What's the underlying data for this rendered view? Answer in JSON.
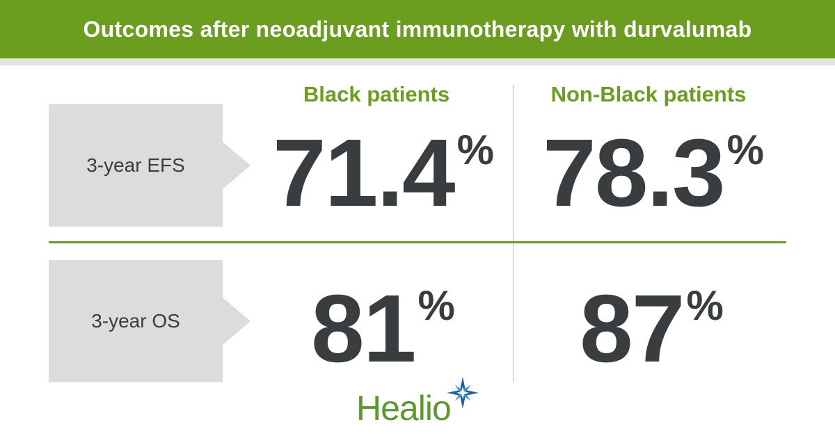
{
  "header": {
    "title": "Outcomes after neoadjuvant immunotherapy with durvalumab"
  },
  "columns": [
    "Black patients",
    "Non-Black patients"
  ],
  "rows": [
    {
      "label": "3-year EFS",
      "values": [
        "71.4",
        "78.3"
      ]
    },
    {
      "label": "3-year OS",
      "values": [
        "81",
        "87"
      ]
    }
  ],
  "unit": "%",
  "logo": {
    "text": "Healio",
    "icon": "star-burst-icon"
  },
  "colors": {
    "accent": "#6b9e1f",
    "text": "#3a3d3f",
    "label_bg": "#dcdcdc",
    "logo_green": "#5a9a2d",
    "logo_blue": "#1f5f9e"
  }
}
